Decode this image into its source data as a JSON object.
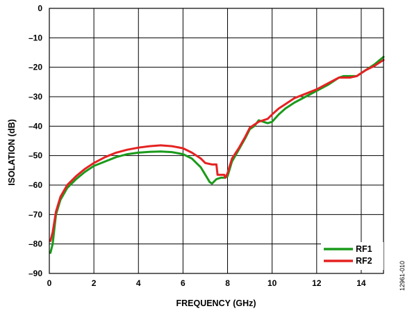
{
  "chart_data": {
    "type": "line",
    "xlabel": "FREQUENCY (GHz)",
    "ylabel": "ISOLATION (dB)",
    "xlim": [
      0,
      15
    ],
    "ylim": [
      -90,
      0
    ],
    "xticks": [
      0,
      2,
      4,
      6,
      8,
      10,
      12,
      14
    ],
    "yticks": [
      0,
      -10,
      -20,
      -30,
      -40,
      -50,
      -60,
      -70,
      -80,
      -90
    ],
    "xtick_labels": [
      "0",
      "2",
      "4",
      "6",
      "8",
      "10",
      "12",
      "14"
    ],
    "ytick_labels": [
      "0",
      "–10",
      "–20",
      "–30",
      "–40",
      "–50",
      "–60",
      "–70",
      "–80",
      "–90"
    ],
    "grid": true,
    "legend_position": "bottom-right",
    "series": [
      {
        "name": "RF1",
        "color": "#1a9a1a",
        "x": [
          0.05,
          0.15,
          0.3,
          0.5,
          0.8,
          1.2,
          1.6,
          2.0,
          2.5,
          3.0,
          3.5,
          4.0,
          4.5,
          5.0,
          5.5,
          6.0,
          6.4,
          6.8,
          7.0,
          7.2,
          7.3,
          7.5,
          7.7,
          7.9,
          8.0,
          8.2,
          8.5,
          8.8,
          9.0,
          9.2,
          9.4,
          9.6,
          9.8,
          10.0,
          10.3,
          10.6,
          11.0,
          11.5,
          12.0,
          12.5,
          13.0,
          13.2,
          13.5,
          13.8,
          14.2,
          14.6,
          15.0
        ],
        "values": [
          -83,
          -80,
          -70,
          -65,
          -61,
          -58,
          -55.5,
          -53.5,
          -52,
          -50.5,
          -49.5,
          -49,
          -48.7,
          -48.6,
          -48.8,
          -49.5,
          -51,
          -54,
          -56.5,
          -59,
          -59.5,
          -58,
          -57.5,
          -57.5,
          -57,
          -52,
          -48,
          -44,
          -41,
          -40,
          -38,
          -38.5,
          -39,
          -38.5,
          -36,
          -34,
          -32,
          -30,
          -28,
          -26,
          -23.5,
          -23,
          -23,
          -23,
          -21,
          -19,
          -16.5
        ]
      },
      {
        "name": "RF2",
        "color": "#e52222",
        "x": [
          0.05,
          0.15,
          0.3,
          0.5,
          0.8,
          1.2,
          1.6,
          2.0,
          2.5,
          3.0,
          3.5,
          4.0,
          4.5,
          5.0,
          5.5,
          6.0,
          6.4,
          6.8,
          7.0,
          7.3,
          7.5,
          7.55,
          7.7,
          7.85,
          7.9,
          8.0,
          8.2,
          8.5,
          8.8,
          9.0,
          9.2,
          9.4,
          9.6,
          9.8,
          10.0,
          10.3,
          10.6,
          11.0,
          11.5,
          12.0,
          12.5,
          13.0,
          13.2,
          13.5,
          13.8,
          14.2,
          14.6,
          15.0
        ],
        "values": [
          -79,
          -76,
          -69,
          -64,
          -60,
          -57,
          -54.5,
          -52.5,
          -50.5,
          -49,
          -48,
          -47.3,
          -46.8,
          -46.5,
          -46.8,
          -47.5,
          -49,
          -51,
          -52.5,
          -53,
          -53,
          -56.5,
          -56.5,
          -56.5,
          -57.5,
          -56,
          -51,
          -47.5,
          -43.5,
          -40.5,
          -39.5,
          -38.5,
          -38,
          -37.5,
          -36,
          -34,
          -32.5,
          -30.5,
          -29,
          -27.5,
          -25.5,
          -23.5,
          -23.5,
          -23.5,
          -23,
          -21,
          -19.5,
          -17.5
        ]
      }
    ]
  },
  "figure_id": "12961-010"
}
